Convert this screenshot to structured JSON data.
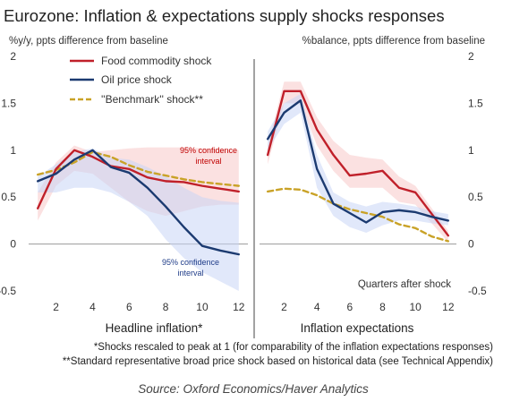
{
  "chart_data": {
    "title": "Eurozone: Inflation & expectations supply shocks responses",
    "notes": [
      "*Shocks rescaled to peak at 1 (for comparability of the inflation expectations responses)",
      "**Standard representative broad price shock based on historical data (see Technical Appendix)"
    ],
    "source": "Source: Oxford Economics/Haver Analytics",
    "legend": {
      "placement": "top-left",
      "entries": [
        "Food commodity shock",
        "Oil price shock",
        "''Benchmark'' shock**"
      ]
    },
    "colors": {
      "food": "#c0202a",
      "oil": "#1b3a70",
      "benchmark": "#c9a227",
      "food_band": "#f7c9c9",
      "oil_band": "#c9d6f5"
    },
    "panels": [
      {
        "type": "line",
        "ylabel": "%y/y, ppts difference from baseline",
        "xlabel": "Headline inflation*",
        "ylim": [
          -0.5,
          2
        ],
        "yticks": [
          "2",
          "1.5",
          "1",
          "0.5",
          "0",
          "-0.5"
        ],
        "xlim": [
          0.5,
          12.5
        ],
        "xticks": [
          "2",
          "4",
          "6",
          "8",
          "10",
          "12"
        ],
        "x": [
          1,
          2,
          3,
          4,
          5,
          6,
          7,
          8,
          9,
          10,
          11,
          12
        ],
        "series": [
          {
            "name": "Food commodity shock",
            "values": [
              0.38,
              0.8,
              1.0,
              0.93,
              0.83,
              0.8,
              0.71,
              0.67,
              0.66,
              0.62,
              0.59,
              0.56
            ],
            "band_upper": [
              0.55,
              0.87,
              1.05,
              0.98,
              1.0,
              1.02,
              1.03,
              1.03,
              1.03,
              1.02,
              1.01,
              1.0
            ],
            "band_lower": [
              0.25,
              0.62,
              0.78,
              0.75,
              0.6,
              0.45,
              0.35,
              0.3,
              0.35,
              0.4,
              0.42,
              0.42
            ]
          },
          {
            "name": "Oil price shock",
            "values": [
              0.67,
              0.75,
              0.9,
              1.0,
              0.82,
              0.76,
              0.6,
              0.4,
              0.18,
              -0.02,
              -0.07,
              -0.11
            ],
            "band_upper": [
              0.72,
              0.85,
              0.98,
              1.02,
              0.92,
              0.9,
              0.82,
              0.72,
              0.6,
              0.5,
              0.46,
              0.44
            ],
            "band_lower": [
              0.55,
              0.55,
              0.6,
              0.6,
              0.55,
              0.45,
              0.3,
              0.05,
              -0.15,
              -0.3,
              -0.4,
              -0.5
            ]
          },
          {
            "name": "''Benchmark'' shock**",
            "values": [
              0.74,
              0.79,
              0.87,
              0.98,
              0.93,
              0.84,
              0.77,
              0.73,
              0.69,
              0.66,
              0.64,
              0.62
            ]
          }
        ],
        "annotations": [
          {
            "text": [
              "95% confidence",
              "interval"
            ],
            "series": "Food commodity shock"
          },
          {
            "text": [
              "95% confidence",
              "interval"
            ],
            "series": "Oil price shock"
          }
        ]
      },
      {
        "type": "line",
        "ylabel": "%balance, ppts difference from baseline",
        "xlabel": "Inflation expectations",
        "corner_label": "Quarters after shock",
        "ylim": [
          -0.5,
          2
        ],
        "yticks": [
          "2",
          "1.5",
          "1",
          "0.5",
          "0",
          "-0.5"
        ],
        "xlim": [
          0.5,
          12.5
        ],
        "xticks": [
          "2",
          "4",
          "6",
          "8",
          "10",
          "12"
        ],
        "x": [
          1,
          2,
          3,
          4,
          5,
          6,
          7,
          8,
          9,
          10,
          11,
          12
        ],
        "series": [
          {
            "name": "Food commodity shock",
            "values": [
              0.95,
              1.63,
              1.63,
              1.22,
              0.95,
              0.73,
              0.75,
              0.78,
              0.6,
              0.55,
              0.32,
              0.09
            ],
            "band_upper": [
              1.05,
              1.73,
              1.73,
              1.35,
              1.1,
              0.95,
              0.92,
              0.9,
              0.72,
              0.62,
              0.38,
              0.14
            ],
            "band_lower": [
              0.85,
              1.5,
              1.5,
              1.05,
              0.78,
              0.6,
              0.6,
              0.6,
              0.45,
              0.42,
              0.22,
              0.02
            ]
          },
          {
            "name": "Oil price shock",
            "values": [
              1.12,
              1.4,
              1.53,
              0.8,
              0.43,
              0.33,
              0.23,
              0.34,
              0.36,
              0.34,
              0.29,
              0.25
            ],
            "band_upper": [
              1.2,
              1.5,
              1.6,
              0.95,
              0.55,
              0.45,
              0.4,
              0.45,
              0.43,
              0.4,
              0.35,
              0.32
            ],
            "band_lower": [
              1.0,
              1.28,
              1.4,
              0.6,
              0.3,
              0.18,
              0.12,
              0.2,
              0.25,
              0.25,
              0.22,
              0.2
            ]
          },
          {
            "name": "''Benchmark'' shock**",
            "values": [
              0.56,
              0.59,
              0.58,
              0.52,
              0.43,
              0.37,
              0.33,
              0.29,
              0.21,
              0.17,
              0.08,
              0.03
            ]
          }
        ]
      }
    ]
  }
}
